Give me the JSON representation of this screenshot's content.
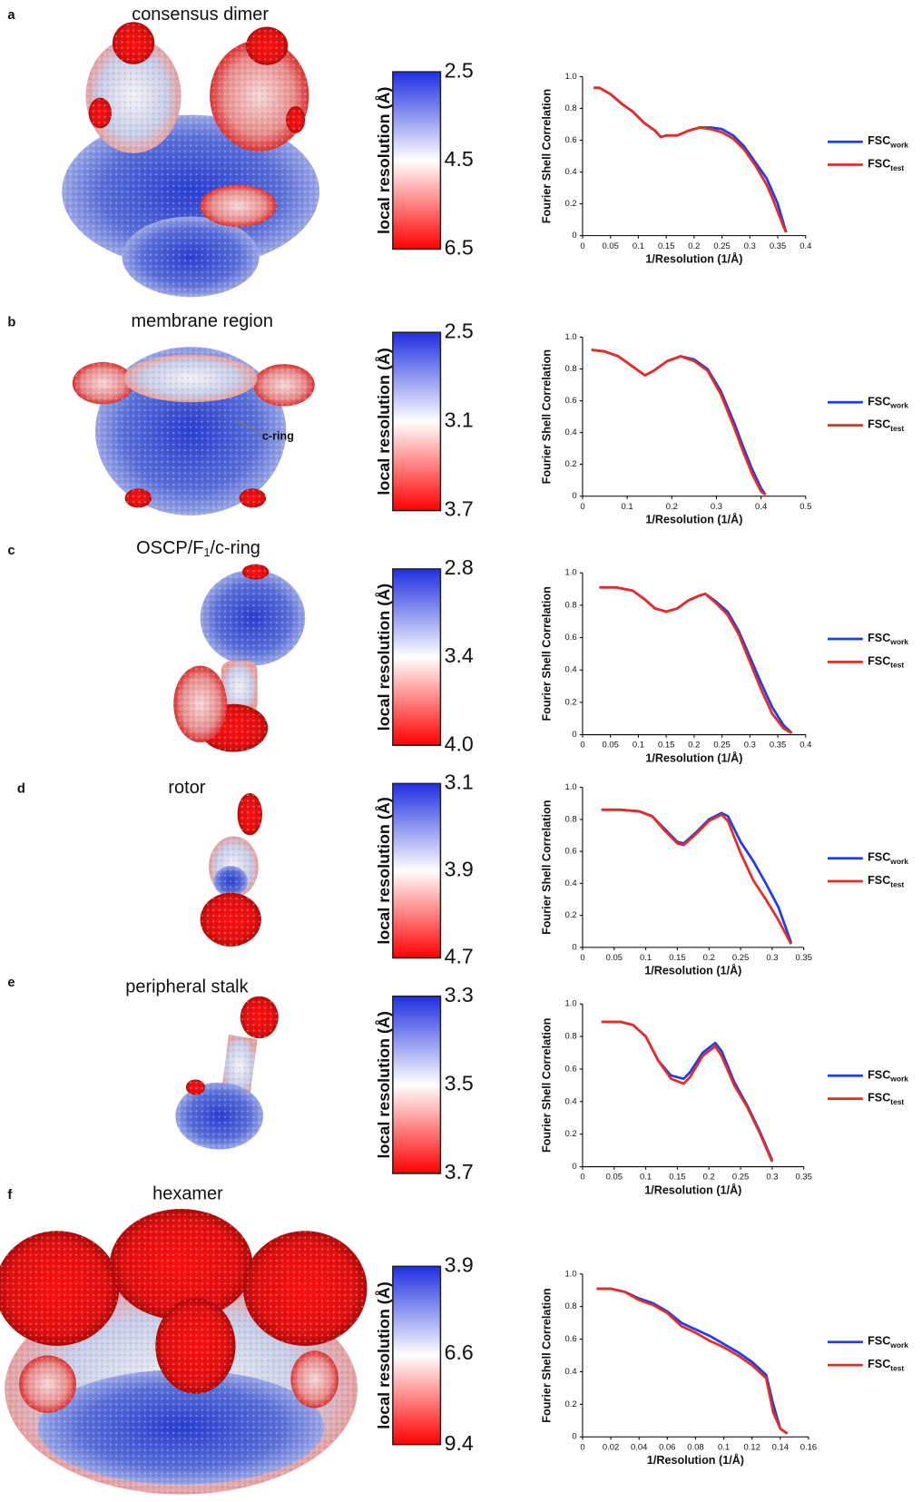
{
  "panels": [
    {
      "label": "a",
      "title": "consensus dimer",
      "colorbar": {
        "label": "local resolution (Å)",
        "ticks": [
          2.5,
          4.5,
          6.5
        ]
      },
      "chart_data": {
        "type": "line",
        "x_label": "1/Resolution (1/Å)",
        "y_label": "Fourier Shell Correlation",
        "xlim": [
          0,
          0.4
        ],
        "xticks": [
          0,
          0.05,
          0.1,
          0.15,
          0.2,
          0.25,
          0.3,
          0.35,
          0.4
        ],
        "ylim": [
          0,
          1
        ],
        "yticks": [
          0,
          0.2,
          0.4,
          0.6,
          0.8,
          {
            "value": 1,
            "label": "1.0"
          }
        ],
        "x": [
          0.02,
          0.03,
          0.05,
          0.07,
          0.09,
          0.11,
          0.13,
          0.14,
          0.15,
          0.17,
          0.19,
          0.21,
          0.23,
          0.25,
          0.27,
          0.29,
          0.31,
          0.33,
          0.34,
          0.35,
          0.36,
          0.365
        ],
        "series": [
          {
            "name": "FSC",
            "name_sub": "work",
            "color": "#1a3ef5",
            "values": [
              0.93,
              0.93,
              0.89,
              0.83,
              0.78,
              0.71,
              0.66,
              0.62,
              0.63,
              0.63,
              0.66,
              0.68,
              0.68,
              0.67,
              0.63,
              0.56,
              0.46,
              0.36,
              0.28,
              0.2,
              0.08,
              0.02
            ]
          },
          {
            "name": "FSC",
            "name_sub": "test",
            "color": "#ec2a22",
            "values": [
              0.93,
              0.93,
              0.89,
              0.83,
              0.78,
              0.71,
              0.66,
              0.62,
              0.63,
              0.63,
              0.66,
              0.68,
              0.67,
              0.65,
              0.61,
              0.54,
              0.44,
              0.32,
              0.24,
              0.15,
              0.06,
              0.02
            ]
          }
        ]
      }
    },
    {
      "label": "b",
      "title": "membrane region",
      "annotation": "c-ring",
      "colorbar": {
        "label": "local resolution (Å)",
        "ticks": [
          2.5,
          3.1,
          3.7
        ]
      },
      "chart_data": {
        "type": "line",
        "x_label": "1/Resolution (1/Å)",
        "y_label": "Fourier Shell Correlation",
        "xlim": [
          0,
          0.5
        ],
        "xticks": [
          0,
          0.1,
          0.2,
          0.3,
          0.4,
          0.5
        ],
        "ylim": [
          0,
          1
        ],
        "yticks": [
          0,
          0.2,
          0.4,
          0.6,
          0.8,
          {
            "value": 1,
            "label": "1.0"
          }
        ],
        "x": [
          0.02,
          0.05,
          0.08,
          0.11,
          0.14,
          0.16,
          0.19,
          0.22,
          0.25,
          0.28,
          0.31,
          0.34,
          0.36,
          0.38,
          0.4,
          0.41
        ],
        "series": [
          {
            "name": "FSC",
            "name_sub": "work",
            "color": "#1a3ef5",
            "values": [
              0.92,
              0.91,
              0.88,
              0.82,
              0.76,
              0.79,
              0.85,
              0.88,
              0.86,
              0.8,
              0.66,
              0.46,
              0.31,
              0.17,
              0.05,
              0.01
            ]
          },
          {
            "name": "FSC",
            "name_sub": "test",
            "color": "#ec2a22",
            "values": [
              0.92,
              0.91,
              0.88,
              0.82,
              0.76,
              0.79,
              0.85,
              0.88,
              0.85,
              0.79,
              0.64,
              0.43,
              0.28,
              0.14,
              0.03,
              0.01
            ]
          }
        ]
      }
    },
    {
      "label": "c",
      "title": [
        {
          "text": "OSCP/F"
        },
        {
          "text": "1",
          "sub": true
        },
        {
          "text": "/c-ring"
        }
      ],
      "colorbar": {
        "label": "local resolution (Å)",
        "ticks": [
          2.8,
          3.4,
          {
            "value": 4,
            "label": "4.0"
          }
        ]
      },
      "chart_data": {
        "type": "line",
        "x_label": "1/Resolution (1/Å)",
        "y_label": "Fourier Shell Correlation",
        "xlim": [
          0,
          0.4
        ],
        "xticks": [
          0,
          0.05,
          0.1,
          0.15,
          0.2,
          0.25,
          0.3,
          0.35,
          0.4
        ],
        "ylim": [
          0,
          1
        ],
        "yticks": [
          0,
          0.2,
          0.4,
          0.6,
          0.8,
          {
            "value": 1,
            "label": "1.0"
          }
        ],
        "x": [
          0.03,
          0.06,
          0.09,
          0.11,
          0.13,
          0.15,
          0.17,
          0.19,
          0.21,
          0.22,
          0.24,
          0.26,
          0.28,
          0.3,
          0.32,
          0.34,
          0.36,
          0.375
        ],
        "series": [
          {
            "name": "FSC",
            "name_sub": "work",
            "color": "#1a3ef5",
            "values": [
              0.91,
              0.91,
              0.89,
              0.84,
              0.78,
              0.76,
              0.78,
              0.83,
              0.86,
              0.87,
              0.82,
              0.76,
              0.64,
              0.48,
              0.32,
              0.17,
              0.06,
              0.01
            ]
          },
          {
            "name": "FSC",
            "name_sub": "test",
            "color": "#ec2a22",
            "values": [
              0.91,
              0.91,
              0.89,
              0.84,
              0.78,
              0.76,
              0.78,
              0.83,
              0.86,
              0.87,
              0.81,
              0.74,
              0.62,
              0.45,
              0.28,
              0.13,
              0.04,
              0.01
            ]
          }
        ]
      }
    },
    {
      "label": "d",
      "title": "rotor",
      "colorbar": {
        "label": "local resolution (Å)",
        "ticks": [
          3.1,
          3.9,
          4.7
        ]
      },
      "chart_data": {
        "type": "line",
        "x_label": "1/Resolution (1/Å)",
        "y_label": "Fourier Shell Correlation",
        "xlim": [
          0,
          0.35
        ],
        "xticks": [
          0,
          0.05,
          0.1,
          0.15,
          0.2,
          0.25,
          0.3,
          0.35
        ],
        "ylim": [
          0,
          1
        ],
        "yticks": [
          0,
          0.2,
          0.4,
          0.6,
          0.8,
          {
            "value": 1,
            "label": "1.0"
          }
        ],
        "x": [
          0.03,
          0.06,
          0.09,
          0.11,
          0.13,
          0.15,
          0.16,
          0.18,
          0.2,
          0.22,
          0.23,
          0.25,
          0.27,
          0.29,
          0.31,
          0.33
        ],
        "series": [
          {
            "name": "FSC",
            "name_sub": "work",
            "color": "#1a3ef5",
            "values": [
              0.86,
              0.86,
              0.85,
              0.82,
              0.74,
              0.66,
              0.65,
              0.72,
              0.8,
              0.84,
              0.82,
              0.66,
              0.54,
              0.4,
              0.25,
              0.03
            ]
          },
          {
            "name": "FSC",
            "name_sub": "test",
            "color": "#ec2a22",
            "values": [
              0.86,
              0.86,
              0.85,
              0.82,
              0.73,
              0.65,
              0.64,
              0.71,
              0.79,
              0.83,
              0.79,
              0.59,
              0.42,
              0.3,
              0.17,
              0.02
            ]
          }
        ]
      }
    },
    {
      "label": "e",
      "title": "peripheral stalk",
      "colorbar": {
        "label": "local resolution (Å)",
        "ticks": [
          3.3,
          3.5,
          3.7
        ]
      },
      "chart_data": {
        "type": "line",
        "x_label": "1/Resolution (1/Å)",
        "y_label": "Fourier Shell Correlation",
        "xlim": [
          0,
          0.35
        ],
        "xticks": [
          0,
          0.05,
          0.1,
          0.15,
          0.2,
          0.25,
          0.3,
          0.35
        ],
        "ylim": [
          0,
          1
        ],
        "yticks": [
          0,
          0.2,
          0.4,
          0.6,
          0.8,
          {
            "value": 1,
            "label": "1.0"
          }
        ],
        "x": [
          0.03,
          0.06,
          0.08,
          0.1,
          0.12,
          0.14,
          0.16,
          0.17,
          0.19,
          0.21,
          0.22,
          0.24,
          0.26,
          0.28,
          0.3
        ],
        "series": [
          {
            "name": "FSC",
            "name_sub": "work",
            "color": "#1a3ef5",
            "values": [
              0.89,
              0.89,
              0.87,
              0.8,
              0.65,
              0.56,
              0.54,
              0.58,
              0.7,
              0.76,
              0.71,
              0.52,
              0.38,
              0.22,
              0.04
            ]
          },
          {
            "name": "FSC",
            "name_sub": "test",
            "color": "#ec2a22",
            "values": [
              0.89,
              0.89,
              0.87,
              0.8,
              0.65,
              0.54,
              0.51,
              0.55,
              0.68,
              0.74,
              0.68,
              0.5,
              0.37,
              0.21,
              0.03
            ]
          }
        ]
      }
    },
    {
      "label": "f",
      "title": "hexamer",
      "colorbar": {
        "label": "local resolution (Å)",
        "ticks": [
          3.9,
          6.6,
          9.4
        ]
      },
      "chart_data": {
        "type": "line",
        "x_label": "1/Resolution (1/Å)",
        "y_label": "Fourier Shell Correlation",
        "xlim": [
          0,
          0.16
        ],
        "xticks": [
          0,
          0.02,
          0.04,
          0.06,
          0.08,
          0.1,
          0.12,
          0.14,
          0.16
        ],
        "ylim": [
          0,
          1
        ],
        "yticks": [
          0,
          0.2,
          0.4,
          0.6,
          0.8,
          {
            "value": 1,
            "label": "1.0"
          }
        ],
        "x": [
          0.01,
          0.02,
          0.03,
          0.04,
          0.05,
          0.06,
          0.07,
          0.08,
          0.09,
          0.1,
          0.11,
          0.12,
          0.13,
          0.135,
          0.14,
          0.145
        ],
        "series": [
          {
            "name": "FSC",
            "name_sub": "work",
            "color": "#1a3ef5",
            "values": [
              0.91,
              0.91,
              0.89,
              0.85,
              0.82,
              0.77,
              0.7,
              0.66,
              0.62,
              0.57,
              0.52,
              0.46,
              0.38,
              0.2,
              0.05,
              0.02
            ]
          },
          {
            "name": "FSC",
            "name_sub": "test",
            "color": "#ec2a22",
            "values": [
              0.91,
              0.91,
              0.89,
              0.84,
              0.81,
              0.76,
              0.68,
              0.64,
              0.59,
              0.55,
              0.5,
              0.44,
              0.36,
              0.15,
              0.05,
              0.02
            ]
          }
        ]
      }
    }
  ]
}
